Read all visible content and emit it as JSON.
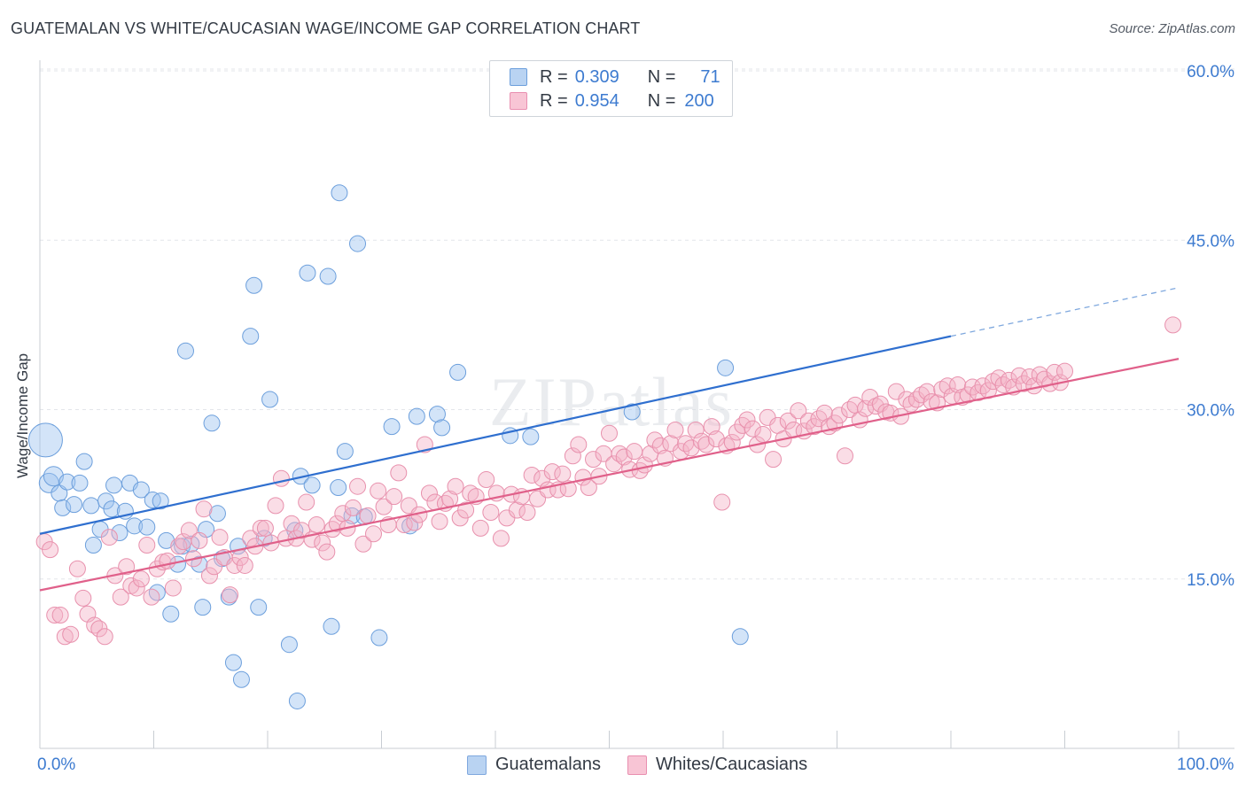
{
  "title": "GUATEMALAN VS WHITE/CAUCASIAN WAGE/INCOME GAP CORRELATION CHART",
  "source": "Source: ZipAtlas.com",
  "watermark": "ZIPatlas",
  "legend": {
    "rows": [
      {
        "r_label": "R =",
        "r_value": "0.309",
        "n_label": "N =",
        "n_value": "71",
        "color": "#9ec3ef"
      },
      {
        "r_label": "R =",
        "r_value": "0.954",
        "n_label": "N =",
        "n_value": "200",
        "color": "#f5b3c8"
      }
    ]
  },
  "chart_data": {
    "type": "scatter",
    "title": "GUATEMALAN VS WHITE/CAUCASIAN WAGE/INCOME GAP CORRELATION CHART",
    "xlabel": "",
    "ylabel": "Wage/Income Gap",
    "xlim": [
      0,
      100
    ],
    "ylim": [
      0,
      60
    ],
    "x_tick_labels": [
      "0.0%",
      "100.0%"
    ],
    "y_ticks": [
      15,
      30,
      45,
      60
    ],
    "y_tick_labels": [
      "15.0%",
      "30.0%",
      "45.0%",
      "60.0%"
    ],
    "grid": true,
    "legend_position": "top-center",
    "series": [
      {
        "name": "Guatemalans",
        "color": "#9ec3ef",
        "stroke": "#6c9fdc",
        "trend": {
          "x0": 0,
          "y0": 19.0,
          "x1": 80,
          "y1": 36.5,
          "dashed_to": 100,
          "dashed_y": 40.8,
          "color": "#2f6fcf"
        },
        "points": [
          [
            0.5,
            27.3
          ],
          [
            0.8,
            23.5
          ],
          [
            1.2,
            24.1
          ],
          [
            1.7,
            22.6
          ],
          [
            2.0,
            21.3
          ],
          [
            2.4,
            23.6
          ],
          [
            3.0,
            21.6
          ],
          [
            3.5,
            23.5
          ],
          [
            3.9,
            25.4
          ],
          [
            4.5,
            21.5
          ],
          [
            4.7,
            18.0
          ],
          [
            5.3,
            19.4
          ],
          [
            5.8,
            21.9
          ],
          [
            6.3,
            21.2
          ],
          [
            6.5,
            23.3
          ],
          [
            7.0,
            19.1
          ],
          [
            7.5,
            21.0
          ],
          [
            7.9,
            23.5
          ],
          [
            8.3,
            19.7
          ],
          [
            8.9,
            22.9
          ],
          [
            9.4,
            19.6
          ],
          [
            9.9,
            22.0
          ],
          [
            10.3,
            13.8
          ],
          [
            10.6,
            21.9
          ],
          [
            11.1,
            18.4
          ],
          [
            11.5,
            11.9
          ],
          [
            12.1,
            16.3
          ],
          [
            12.5,
            17.9
          ],
          [
            12.8,
            35.2
          ],
          [
            13.3,
            18.1
          ],
          [
            14.0,
            16.3
          ],
          [
            14.3,
            12.5
          ],
          [
            14.6,
            19.4
          ],
          [
            15.1,
            28.8
          ],
          [
            15.6,
            20.8
          ],
          [
            16.0,
            16.8
          ],
          [
            16.6,
            13.4
          ],
          [
            17.0,
            7.6
          ],
          [
            17.4,
            17.9
          ],
          [
            17.7,
            6.1
          ],
          [
            18.5,
            36.5
          ],
          [
            18.8,
            41.0
          ],
          [
            19.2,
            12.5
          ],
          [
            19.7,
            18.6
          ],
          [
            20.2,
            30.9
          ],
          [
            21.9,
            9.2
          ],
          [
            22.4,
            19.3
          ],
          [
            22.6,
            4.2
          ],
          [
            22.9,
            24.1
          ],
          [
            23.5,
            42.1
          ],
          [
            23.9,
            23.3
          ],
          [
            25.3,
            41.8
          ],
          [
            25.6,
            10.8
          ],
          [
            26.2,
            23.1
          ],
          [
            26.3,
            49.2
          ],
          [
            26.8,
            26.3
          ],
          [
            27.4,
            20.6
          ],
          [
            27.9,
            44.7
          ],
          [
            28.5,
            20.5
          ],
          [
            29.8,
            9.8
          ],
          [
            30.9,
            28.5
          ],
          [
            32.5,
            19.7
          ],
          [
            33.1,
            29.4
          ],
          [
            34.9,
            29.6
          ],
          [
            35.3,
            28.4
          ],
          [
            36.7,
            33.3
          ],
          [
            41.3,
            27.7
          ],
          [
            43.1,
            27.6
          ],
          [
            52.0,
            29.8
          ],
          [
            60.2,
            33.7
          ],
          [
            61.5,
            9.9
          ]
        ]
      },
      {
        "name": "Whites/Caucasians",
        "color": "#f5b3c8",
        "stroke": "#e891ad",
        "trend": {
          "x0": 0,
          "y0": 14.0,
          "x1": 100,
          "y1": 34.5,
          "color": "#e0608a"
        },
        "points": [
          [
            0.4,
            18.3
          ],
          [
            0.9,
            17.6
          ],
          [
            1.3,
            11.8
          ],
          [
            1.8,
            11.8
          ],
          [
            2.2,
            9.9
          ],
          [
            2.7,
            10.1
          ],
          [
            3.3,
            15.9
          ],
          [
            3.8,
            13.3
          ],
          [
            4.2,
            11.9
          ],
          [
            4.8,
            10.9
          ],
          [
            5.2,
            10.6
          ],
          [
            5.7,
            9.9
          ],
          [
            6.1,
            18.7
          ],
          [
            6.6,
            15.3
          ],
          [
            7.1,
            13.4
          ],
          [
            7.6,
            16.1
          ],
          [
            8.0,
            14.4
          ],
          [
            8.5,
            14.2
          ],
          [
            8.9,
            15.0
          ],
          [
            9.4,
            18.0
          ],
          [
            9.8,
            13.4
          ],
          [
            10.3,
            15.9
          ],
          [
            10.8,
            16.5
          ],
          [
            11.2,
            16.6
          ],
          [
            11.7,
            14.2
          ],
          [
            12.2,
            17.9
          ],
          [
            12.6,
            18.3
          ],
          [
            13.1,
            19.3
          ],
          [
            13.5,
            16.8
          ],
          [
            14.0,
            18.4
          ],
          [
            14.4,
            21.2
          ],
          [
            14.9,
            15.3
          ],
          [
            15.3,
            16.1
          ],
          [
            15.8,
            18.7
          ],
          [
            16.2,
            16.9
          ],
          [
            16.7,
            13.6
          ],
          [
            17.1,
            16.2
          ],
          [
            17.6,
            16.9
          ],
          [
            18.0,
            16.2
          ],
          [
            18.5,
            18.6
          ],
          [
            18.9,
            17.9
          ],
          [
            19.4,
            19.5
          ],
          [
            19.8,
            19.5
          ],
          [
            20.3,
            18.2
          ],
          [
            20.7,
            21.5
          ],
          [
            21.2,
            23.9
          ],
          [
            21.6,
            18.6
          ],
          [
            22.1,
            19.9
          ],
          [
            22.5,
            18.6
          ],
          [
            23.0,
            19.3
          ],
          [
            23.4,
            21.8
          ],
          [
            23.9,
            18.5
          ],
          [
            24.3,
            19.8
          ],
          [
            24.8,
            18.2
          ],
          [
            25.2,
            17.4
          ],
          [
            25.7,
            19.4
          ],
          [
            26.1,
            19.9
          ],
          [
            26.6,
            20.8
          ],
          [
            27.0,
            19.5
          ],
          [
            27.5,
            21.3
          ],
          [
            27.9,
            23.2
          ],
          [
            28.4,
            18.1
          ],
          [
            28.8,
            20.6
          ],
          [
            29.3,
            19.0
          ],
          [
            29.7,
            22.8
          ],
          [
            30.2,
            21.4
          ],
          [
            30.6,
            19.8
          ],
          [
            31.1,
            22.3
          ],
          [
            31.5,
            24.4
          ],
          [
            32.0,
            19.8
          ],
          [
            32.4,
            21.5
          ],
          [
            32.9,
            20.0
          ],
          [
            33.3,
            20.7
          ],
          [
            33.8,
            26.9
          ],
          [
            34.2,
            22.6
          ],
          [
            34.7,
            21.8
          ],
          [
            35.1,
            20.1
          ],
          [
            35.6,
            21.7
          ],
          [
            36.0,
            22.1
          ],
          [
            36.5,
            23.2
          ],
          [
            36.9,
            20.4
          ],
          [
            37.4,
            21.1
          ],
          [
            37.8,
            22.6
          ],
          [
            38.3,
            22.3
          ],
          [
            38.7,
            19.5
          ],
          [
            39.2,
            23.8
          ],
          [
            39.6,
            20.9
          ],
          [
            40.1,
            22.6
          ],
          [
            40.5,
            18.6
          ],
          [
            41.0,
            20.4
          ],
          [
            41.4,
            22.5
          ],
          [
            41.9,
            21.1
          ],
          [
            42.3,
            22.3
          ],
          [
            42.8,
            20.9
          ],
          [
            43.2,
            24.2
          ],
          [
            43.7,
            22.1
          ],
          [
            44.1,
            23.9
          ],
          [
            44.6,
            22.9
          ],
          [
            45.0,
            24.5
          ],
          [
            45.5,
            22.9
          ],
          [
            45.9,
            24.3
          ],
          [
            46.4,
            23.0
          ],
          [
            46.8,
            25.9
          ],
          [
            47.3,
            26.9
          ],
          [
            47.7,
            24.0
          ],
          [
            48.2,
            23.1
          ],
          [
            48.6,
            25.6
          ],
          [
            49.1,
            24.1
          ],
          [
            49.5,
            26.1
          ],
          [
            50.0,
            27.9
          ],
          [
            50.4,
            25.2
          ],
          [
            50.9,
            26.1
          ],
          [
            51.3,
            25.8
          ],
          [
            51.8,
            24.7
          ],
          [
            52.2,
            26.3
          ],
          [
            52.7,
            24.6
          ],
          [
            53.1,
            25.1
          ],
          [
            53.6,
            26.1
          ],
          [
            54.0,
            27.3
          ],
          [
            54.5,
            26.8
          ],
          [
            54.9,
            25.7
          ],
          [
            55.4,
            27.0
          ],
          [
            55.8,
            28.2
          ],
          [
            56.3,
            26.3
          ],
          [
            56.7,
            27.0
          ],
          [
            57.2,
            26.6
          ],
          [
            57.6,
            28.2
          ],
          [
            58.1,
            27.2
          ],
          [
            58.5,
            26.9
          ],
          [
            59.0,
            28.5
          ],
          [
            59.4,
            27.4
          ],
          [
            59.9,
            21.8
          ],
          [
            60.3,
            26.8
          ],
          [
            60.8,
            27.1
          ],
          [
            61.2,
            28.0
          ],
          [
            61.7,
            28.6
          ],
          [
            62.1,
            29.1
          ],
          [
            62.6,
            28.3
          ],
          [
            63.0,
            26.9
          ],
          [
            63.5,
            27.8
          ],
          [
            63.9,
            29.3
          ],
          [
            64.4,
            25.6
          ],
          [
            64.8,
            28.6
          ],
          [
            65.3,
            27.4
          ],
          [
            65.7,
            29.0
          ],
          [
            66.2,
            28.2
          ],
          [
            66.6,
            29.9
          ],
          [
            67.1,
            28.1
          ],
          [
            67.5,
            29.0
          ],
          [
            68.0,
            28.5
          ],
          [
            68.4,
            29.2
          ],
          [
            68.9,
            29.7
          ],
          [
            69.3,
            28.5
          ],
          [
            69.8,
            28.8
          ],
          [
            70.2,
            29.5
          ],
          [
            70.7,
            25.9
          ],
          [
            71.1,
            30.0
          ],
          [
            71.6,
            30.4
          ],
          [
            72.0,
            29.1
          ],
          [
            72.5,
            30.1
          ],
          [
            72.9,
            31.1
          ],
          [
            73.4,
            30.3
          ],
          [
            73.8,
            30.5
          ],
          [
            74.3,
            29.8
          ],
          [
            74.7,
            29.7
          ],
          [
            75.2,
            31.6
          ],
          [
            75.6,
            29.4
          ],
          [
            76.1,
            30.9
          ],
          [
            76.5,
            30.5
          ],
          [
            77.0,
            30.9
          ],
          [
            77.4,
            31.3
          ],
          [
            77.9,
            31.6
          ],
          [
            78.3,
            30.7
          ],
          [
            78.8,
            30.6
          ],
          [
            79.2,
            31.8
          ],
          [
            79.7,
            32.1
          ],
          [
            80.1,
            31.2
          ],
          [
            80.6,
            32.2
          ],
          [
            81.0,
            31.1
          ],
          [
            81.5,
            31.3
          ],
          [
            81.9,
            32.0
          ],
          [
            82.4,
            31.5
          ],
          [
            82.8,
            32.1
          ],
          [
            83.3,
            31.7
          ],
          [
            83.7,
            32.5
          ],
          [
            84.2,
            32.8
          ],
          [
            84.6,
            32.2
          ],
          [
            85.1,
            32.6
          ],
          [
            85.5,
            32.0
          ],
          [
            86.0,
            33.0
          ],
          [
            86.4,
            32.3
          ],
          [
            86.9,
            32.9
          ],
          [
            87.3,
            32.1
          ],
          [
            87.8,
            33.1
          ],
          [
            88.2,
            32.7
          ],
          [
            88.7,
            32.3
          ],
          [
            89.1,
            33.3
          ],
          [
            89.6,
            32.4
          ],
          [
            90.0,
            33.4
          ],
          [
            99.5,
            37.5
          ]
        ]
      }
    ]
  },
  "bottom_legend": [
    {
      "label": "Guatemalans",
      "color": "#b9d3f2",
      "stroke": "#7fa8de"
    },
    {
      "label": "Whites/Caucasians",
      "color": "#f8c5d5",
      "stroke": "#e98fb0"
    }
  ]
}
